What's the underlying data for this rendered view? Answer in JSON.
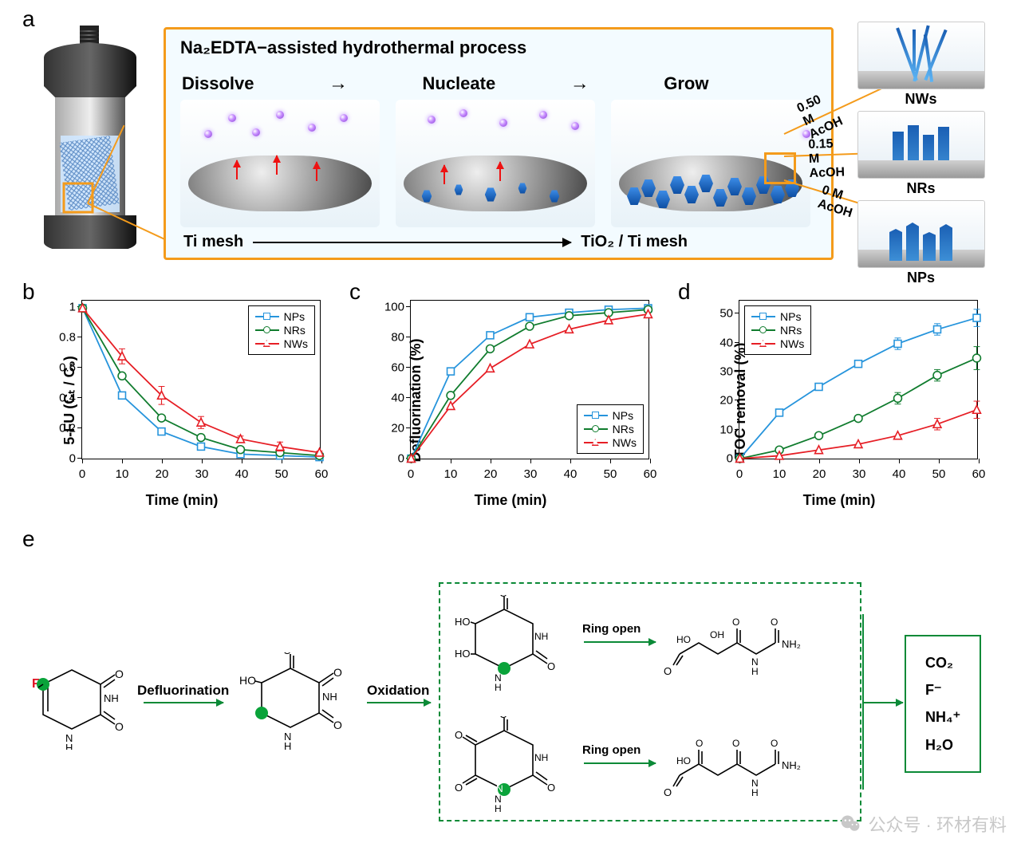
{
  "panel_labels": {
    "a": "a",
    "b": "b",
    "c": "c",
    "d": "d",
    "e": "e"
  },
  "panel_a": {
    "title": "Na₂EDTA−assisted hydrothermal process",
    "stages": [
      "Dissolve",
      "Nucleate",
      "Grow"
    ],
    "bottom_left": "Ti mesh",
    "bottom_right": "TiO₂ / Ti mesh",
    "outputs": [
      {
        "conc": "0.50 M AcOH",
        "label": "NWs"
      },
      {
        "conc": "0.15 M AcOH",
        "label": "NRs"
      },
      {
        "conc": "0 M AcOH",
        "label": "NPs"
      }
    ],
    "border_color": "#f49b1b",
    "background_color": "#f3fbff"
  },
  "charts": {
    "x_label": "Time (min)",
    "x_ticks": [
      0,
      10,
      20,
      30,
      40,
      50,
      60
    ],
    "series_style": {
      "NPs": {
        "color": "#2694dc",
        "marker": "square"
      },
      "NRs": {
        "color": "#107c2e",
        "marker": "circle"
      },
      "NWs": {
        "color": "#e61e25",
        "marker": "triangle"
      }
    },
    "b": {
      "y_label": "5-FU (Cₜ / C₀)",
      "y_ticks": [
        0.0,
        0.2,
        0.4,
        0.6,
        0.8,
        1.0
      ],
      "ylim": [
        0,
        1.05
      ],
      "legend_pos": "top-right",
      "data": {
        "NPs": [
          1.0,
          0.42,
          0.18,
          0.08,
          0.03,
          0.02,
          0.01
        ],
        "NRs": [
          1.0,
          0.55,
          0.27,
          0.14,
          0.06,
          0.04,
          0.02
        ],
        "NWs": [
          1.0,
          0.68,
          0.42,
          0.24,
          0.13,
          0.08,
          0.04
        ]
      },
      "error": {
        "NWs": [
          0,
          0.05,
          0.06,
          0.04,
          0.02,
          0.03,
          0.01
        ]
      }
    },
    "c": {
      "y_label": "Defluorination (%)",
      "y_ticks": [
        0,
        20,
        40,
        60,
        80,
        100
      ],
      "ylim": [
        0,
        105
      ],
      "legend_pos": "bottom-right",
      "data": {
        "NPs": [
          0,
          58,
          82,
          94,
          97,
          99,
          100
        ],
        "NRs": [
          0,
          42,
          73,
          88,
          95,
          97,
          99
        ],
        "NWs": [
          0,
          35,
          60,
          76,
          86,
          92,
          96
        ]
      }
    },
    "d": {
      "y_label": "TOC removal (%)",
      "y_ticks": [
        0,
        10,
        20,
        30,
        40,
        50
      ],
      "ylim": [
        0,
        55
      ],
      "legend_pos": "top-left",
      "data": {
        "NPs": [
          0,
          16,
          25,
          33,
          40,
          45,
          49
        ],
        "NRs": [
          0,
          3,
          8,
          14,
          21,
          29,
          35
        ],
        "NWs": [
          0,
          1,
          3,
          5,
          8,
          12,
          17
        ]
      },
      "error": {
        "NPs": [
          0,
          0,
          0,
          0,
          2,
          2,
          3
        ],
        "NRs": [
          0,
          0,
          0,
          0,
          2,
          2,
          4
        ],
        "NWs": [
          0,
          0,
          0,
          0,
          0,
          2,
          3
        ]
      }
    }
  },
  "panel_e": {
    "step1": "Defluorination",
    "step2": "Oxidation",
    "step3": "Ring open",
    "products": [
      "CO₂",
      "F⁻",
      "NH₄⁺",
      "H₂O"
    ],
    "accent": "#0b8a37"
  },
  "watermark": "公众号 · 环材有料"
}
